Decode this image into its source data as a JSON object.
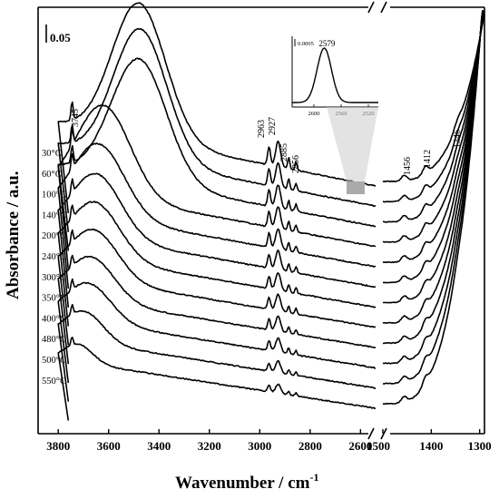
{
  "chart_data": {
    "type": "line",
    "xlabel": "Wavenumber / cm",
    "xlabel_sup": "-1",
    "ylabel": "Absorbance / a.u.",
    "scale_bar_label": "0.05",
    "x_axis": "reversed, broken between 2540 and 1500 cm-1",
    "x_segments": [
      {
        "range": [
          3880,
          2540
        ],
        "ticks": [
          "3800",
          "3600",
          "3400",
          "3200",
          "3000",
          "2800",
          "2600"
        ]
      },
      {
        "range": [
          1500,
          1290
        ],
        "ticks": [
          "1500",
          "1400",
          "1300"
        ]
      }
    ],
    "series": [
      {
        "name": "30°C"
      },
      {
        "name": "60°C"
      },
      {
        "name": "100°C"
      },
      {
        "name": "140°C"
      },
      {
        "name": "200°C"
      },
      {
        "name": "240°C"
      },
      {
        "name": "300°C"
      },
      {
        "name": "350°C"
      },
      {
        "name": "400°C"
      },
      {
        "name": "480°C"
      },
      {
        "name": "500°C"
      },
      {
        "name": "550°C"
      }
    ],
    "peak_labels": [
      "3745",
      "2963",
      "2927",
      "2885",
      "2856",
      "1456",
      "1412",
      "1346"
    ],
    "inset": {
      "scale_bar_label": "0.0005",
      "peak_label": "2579",
      "ticks": [
        "2600",
        "2560",
        "2520"
      ],
      "peak": {
        "x": 2579,
        "description_range": [
          2610,
          2510
        ]
      }
    },
    "legend_placement": "left, labels along curves",
    "grid": false
  }
}
